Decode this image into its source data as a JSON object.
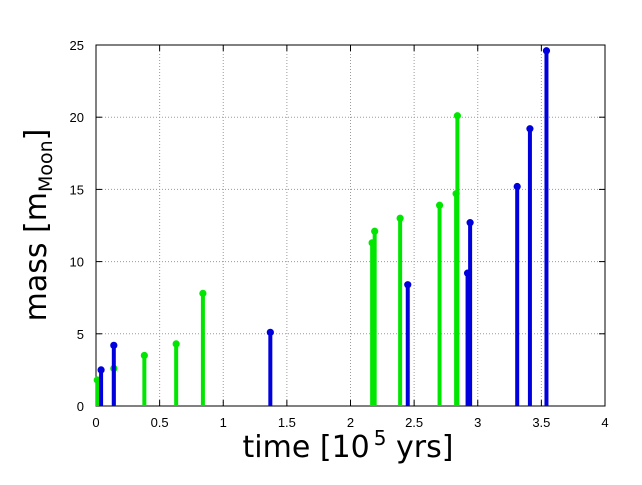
{
  "chart_data": {
    "type": "scatter",
    "style": "impulses-with-points",
    "xlabel": {
      "base": "time [10",
      "superscript": "5",
      "rest": " yrs]"
    },
    "ylabel": {
      "base": "mass [m",
      "subscript": "Moon",
      "rest": "]"
    },
    "xlim": [
      0,
      4
    ],
    "ylim": [
      0,
      25
    ],
    "xticks": [
      "0",
      "0.5",
      "1",
      "1.5",
      "2",
      "2.5",
      "3",
      "3.5",
      "4"
    ],
    "yticks": [
      "0",
      "5",
      "10",
      "15",
      "20",
      "25"
    ],
    "grid": true,
    "colors": {
      "series_a": "#00e600",
      "series_b": "#0000dd"
    },
    "series": [
      {
        "color_key": "series_a",
        "points": [
          {
            "x": 0.01,
            "y": 1.8
          },
          {
            "x": 0.14,
            "y": 2.6
          },
          {
            "x": 0.38,
            "y": 3.5
          },
          {
            "x": 0.63,
            "y": 4.3
          },
          {
            "x": 0.84,
            "y": 7.8
          },
          {
            "x": 2.17,
            "y": 11.3
          },
          {
            "x": 2.19,
            "y": 12.1
          },
          {
            "x": 2.39,
            "y": 13.0
          },
          {
            "x": 2.7,
            "y": 13.9
          },
          {
            "x": 2.83,
            "y": 14.7
          },
          {
            "x": 2.84,
            "y": 20.1
          }
        ]
      },
      {
        "color_key": "series_b",
        "points": [
          {
            "x": 0.04,
            "y": 2.5
          },
          {
            "x": 0.14,
            "y": 4.2
          },
          {
            "x": 1.37,
            "y": 5.1
          },
          {
            "x": 2.45,
            "y": 8.4
          },
          {
            "x": 2.92,
            "y": 9.2
          },
          {
            "x": 2.94,
            "y": 12.7
          },
          {
            "x": 3.31,
            "y": 15.2
          },
          {
            "x": 3.41,
            "y": 19.2
          },
          {
            "x": 3.54,
            "y": 24.6
          }
        ]
      }
    ]
  }
}
